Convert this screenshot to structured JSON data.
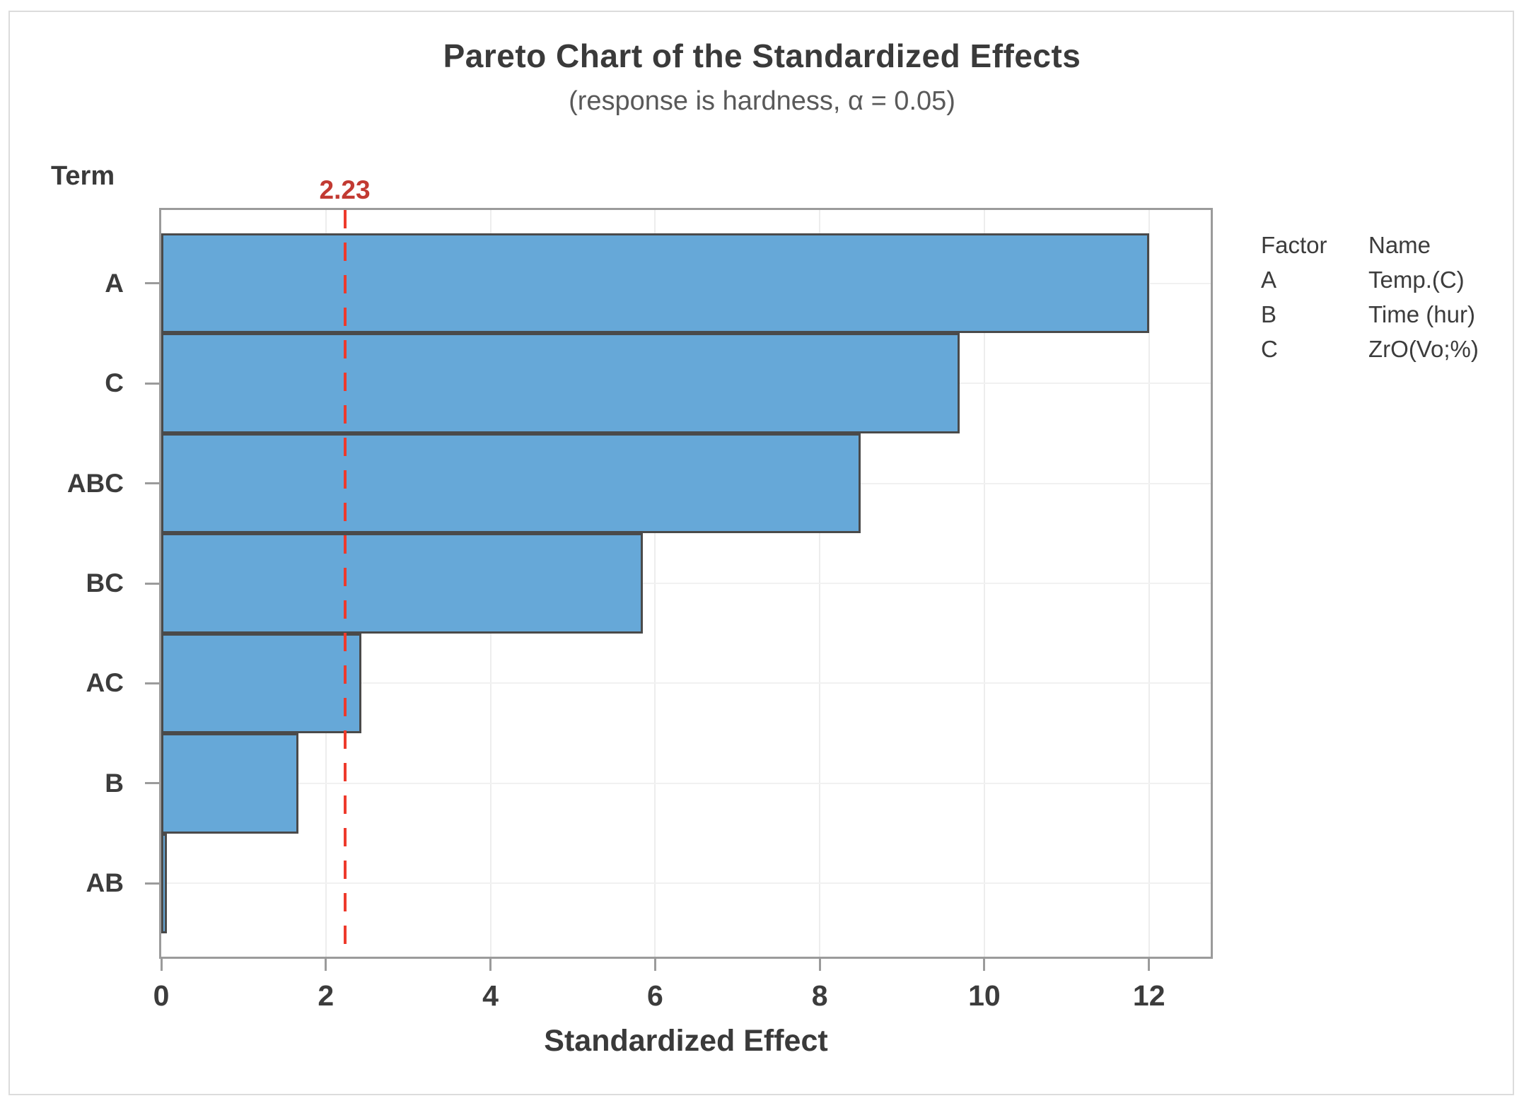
{
  "title": "Pareto Chart of the Standardized Effects",
  "subtitle": "(response is hardness, α = 0.05)",
  "term_label": "Term",
  "x_axis_title": "Standardized Effect",
  "reference": {
    "label": "2.23",
    "value": 2.23
  },
  "legend": {
    "factor_header": "Factor",
    "name_header": "Name",
    "rows": [
      {
        "factor": "A",
        "name": "Temp.(C)"
      },
      {
        "factor": "B",
        "name": "Time (hur)"
      },
      {
        "factor": "C",
        "name": "ZrO(Vo;%)"
      }
    ]
  },
  "chart_data": {
    "type": "bar",
    "orientation": "horizontal",
    "title": "Pareto Chart of the Standardized Effects",
    "subtitle": "(response is hardness, α = 0.05)",
    "xlabel": "Standardized Effect",
    "ylabel": "Term",
    "categories": [
      "A",
      "C",
      "ABC",
      "BC",
      "AC",
      "B",
      "AB"
    ],
    "values": [
      12.0,
      9.7,
      8.5,
      5.85,
      2.43,
      1.67,
      0.06
    ],
    "reference_line": 2.23,
    "xlim": [
      0,
      12.75
    ],
    "xticks": [
      0,
      2,
      4,
      6,
      8,
      10,
      12
    ],
    "grid": true,
    "legend_position": "right"
  },
  "colors": {
    "bar_fill": "#66a8d8",
    "bar_border": "#4a4a4a",
    "frame": "#9b9b9b",
    "grid": "#ededed",
    "reference_red": "#ee3a2c",
    "reference_label_red": "#c23a32",
    "text_dark": "#3a3a3a",
    "text_gray": "#595959"
  }
}
